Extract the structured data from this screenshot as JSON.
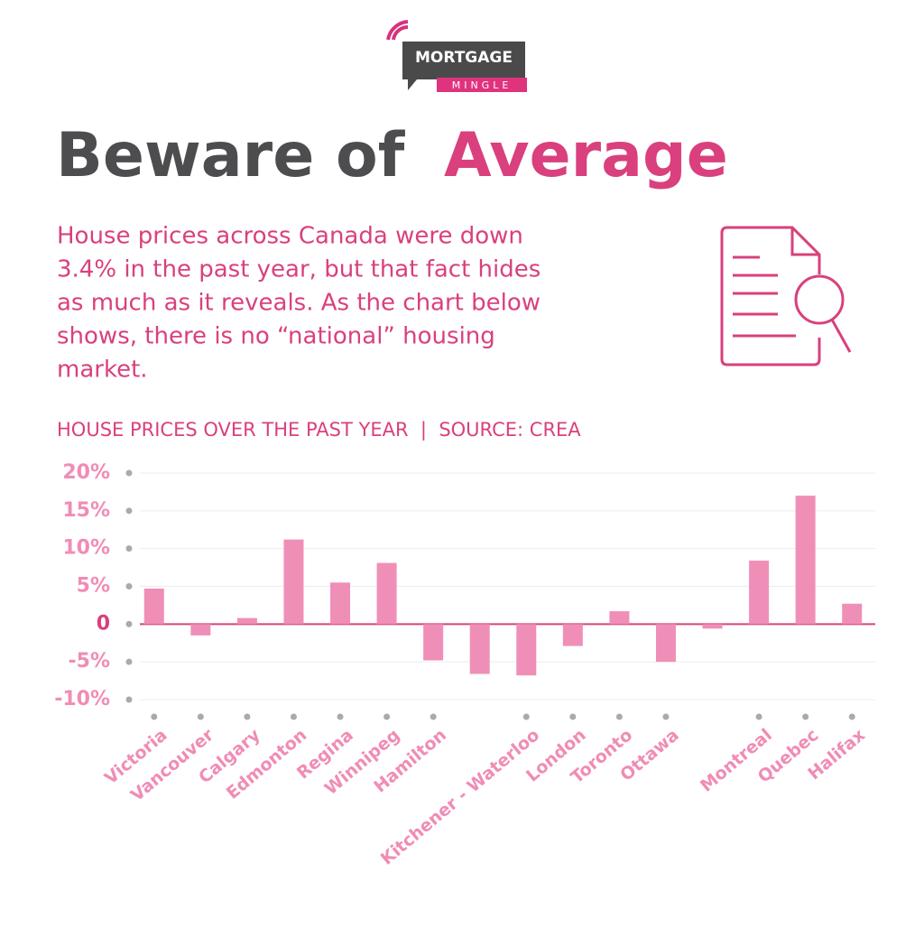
{
  "logo": {
    "top": "MORTGAGE",
    "bottom": "MINGLE"
  },
  "headline": {
    "part1": "Beware of",
    "part2": "Average"
  },
  "intro": [
    "House prices across Canada were down",
    "3.4% in the past year, but that fact hides",
    "as much as it reveals. As the chart below",
    "shows, there is no “national” housing",
    "market."
  ],
  "chart_data": {
    "type": "bar",
    "title": "HOUSE PRICES OVER THE PAST YEAR  |  SOURCE: CREA",
    "categories": [
      "Victoria",
      "Vancouver",
      "Calgary",
      "Edmonton",
      "Regina",
      "Winnipeg",
      "Hamilton",
      null,
      "Kitchener - Waterloo",
      "London",
      "Toronto",
      "Ottawa",
      null,
      "Montreal",
      "Quebec",
      "Halifax"
    ],
    "values": [
      4.7,
      -1.5,
      0.8,
      11.2,
      5.5,
      8.1,
      -4.8,
      -6.6,
      -6.8,
      -2.9,
      1.7,
      -5,
      -0.6,
      8.4,
      17,
      2.7
    ],
    "color": "#ef8fb7",
    "ylim": [
      -10,
      20
    ],
    "yticks": [
      {
        "value": -10,
        "label": "-10%"
      },
      {
        "value": -5,
        "label": "-5%"
      },
      0,
      {
        "value": 5,
        "label": "5%"
      },
      {
        "value": 10,
        "label": "10%"
      },
      {
        "value": 15,
        "label": "15%"
      },
      {
        "value": 20,
        "label": "20%"
      }
    ],
    "grid": true
  }
}
